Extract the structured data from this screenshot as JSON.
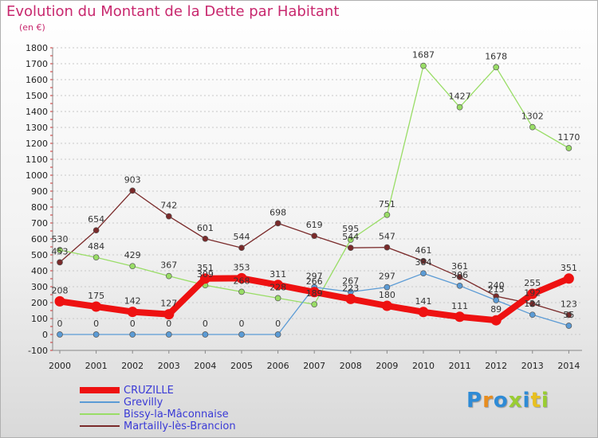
{
  "header": {
    "title": "Evolution du Montant de la Dette par Habitant",
    "subtitle": "(en €)"
  },
  "logo": {
    "text": "Proxiti",
    "colors": [
      "#2e8bd6",
      "#e88d1e",
      "#2e8bd6",
      "#9acd32",
      "#2e8bd6",
      "#e8c020",
      "#9acd32"
    ]
  },
  "chart_data": {
    "type": "line",
    "title": "Evolution du Montant de la Dette par Habitant",
    "subtitle": "(en €)",
    "x": [
      "2000",
      "2001",
      "2002",
      "2003",
      "2004",
      "2005",
      "2006",
      "2007",
      "2008",
      "2009",
      "2010",
      "2011",
      "2012",
      "2013",
      "2014"
    ],
    "ylim": [
      -100,
      1800
    ],
    "yticks": [
      "-100",
      "0",
      "100",
      "200",
      "300",
      "400",
      "500",
      "600",
      "700",
      "800",
      "900",
      "1000",
      "1100",
      "1200",
      "1300",
      "1400",
      "1500",
      "1600",
      "1700",
      "1800"
    ],
    "grid": "horizontal dashed",
    "legend": "bottom-left",
    "series": [
      {
        "name": "CRUZILLE",
        "color": "#ee1111",
        "values": [
          208,
          175,
          142,
          127,
          351,
          353,
          311,
          266,
          223,
          180,
          141,
          111,
          89,
          255,
          351
        ],
        "labels": [
          "208",
          "175",
          "142",
          "127",
          "351",
          "353",
          "311",
          "266",
          "223",
          "180",
          "141",
          "111",
          "89",
          "255",
          "351"
        ]
      },
      {
        "name": "Grevilly",
        "color": "#5b9bd5",
        "values": [
          0,
          0,
          0,
          0,
          0,
          0,
          0,
          297,
          267,
          297,
          384,
          306,
          215,
          124,
          55
        ],
        "labels": [
          "0",
          "0",
          "0",
          "0",
          "0",
          "0",
          "0",
          "297",
          "267",
          "297",
          "384",
          "306",
          "215",
          "124",
          "55"
        ]
      },
      {
        "name": "Bissy-la-Mâconnaise",
        "color": "#99dd66",
        "values": [
          530,
          484,
          429,
          367,
          309,
          268,
          228,
          189,
          595,
          751,
          1687,
          1427,
          1678,
          1302,
          1170
        ],
        "labels": [
          "530",
          "484",
          "429",
          "367",
          "309",
          "268",
          "228",
          "189",
          "595",
          "751",
          "1687",
          "1427",
          "1678",
          "1302",
          "1170"
        ]
      },
      {
        "name": "Martailly-lès-Brancion",
        "color": "#7a2a2a",
        "values": [
          453,
          654,
          903,
          742,
          601,
          544,
          698,
          619,
          544,
          547,
          461,
          361,
          240,
          192,
          123
        ],
        "labels": [
          "453",
          "654",
          "903",
          "742",
          "601",
          "544",
          "698",
          "619",
          "544",
          "547",
          "461",
          "361",
          "240",
          "192",
          "123"
        ]
      }
    ]
  }
}
